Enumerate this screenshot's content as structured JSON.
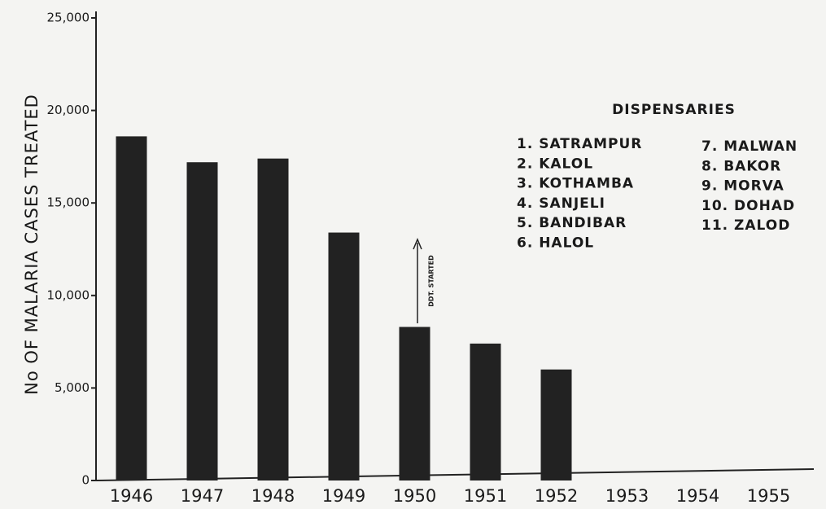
{
  "chart_data": {
    "type": "bar",
    "y_axis_label": "No OF MALARIA CASES TREATED",
    "categories": [
      "1946",
      "1947",
      "1948",
      "1949",
      "1950",
      "1951",
      "1952",
      "1953",
      "1954",
      "1955"
    ],
    "values": [
      18600,
      17200,
      17400,
      13400,
      8300,
      7400,
      6000,
      null,
      null,
      null
    ],
    "color": "#222222",
    "ylim": [
      0,
      25000
    ],
    "yticks": [
      0,
      {
        "value": 5000,
        "label": "5,000"
      },
      {
        "value": 10000,
        "label": "10,000"
      },
      {
        "value": 15000,
        "label": "15,000"
      },
      {
        "value": 20000,
        "label": "20,000"
      },
      {
        "value": 25000,
        "label": "25,000"
      }
    ],
    "annotation": "DDT. STARTED",
    "legend_title": "DISPENSARIES",
    "legend_items": [
      "1. SATRAMPUR",
      "2. KALOL",
      "3. KOTHAMBA",
      "4. SANJELI",
      "5. BANDIBAR",
      "6. HALOL",
      "7. MALWAN",
      "8. BAKOR",
      "9. MORVA",
      "10. DOHAD",
      "11. ZALOD"
    ]
  }
}
